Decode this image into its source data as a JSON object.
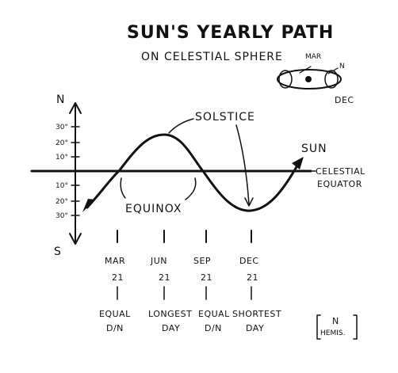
{
  "title_line1": "SUN'S YEARLY PATH",
  "title_line2": "ON CELESTIAL SPHERE",
  "axis": {
    "north": "N",
    "south": "S",
    "ticks": [
      "30°",
      "20°",
      "10°",
      "10°",
      "20°",
      "30°"
    ]
  },
  "labels": {
    "solstice": "SOLSTICE",
    "sun": "SUN",
    "celestial_equator_1": "CELESTIAL",
    "celestial_equator_2": "EQUATOR",
    "equinox": "EQUINOX"
  },
  "dates": [
    {
      "month": "MAR",
      "day": "21",
      "note1": "EQUAL",
      "note2": "D/N"
    },
    {
      "month": "JUN",
      "day": "21",
      "note1": "LONGEST",
      "note2": "DAY"
    },
    {
      "month": "SEP",
      "day": "21",
      "note1": "EQUAL",
      "note2": "D/N"
    },
    {
      "month": "DEC",
      "day": "21",
      "note1": "SHORTEST",
      "note2": "DAY"
    }
  ],
  "hemisphere": {
    "line1": "N",
    "line2": "HEMIS."
  },
  "inset": {
    "mar": "MAR",
    "dec": "DEC",
    "n": "N"
  }
}
